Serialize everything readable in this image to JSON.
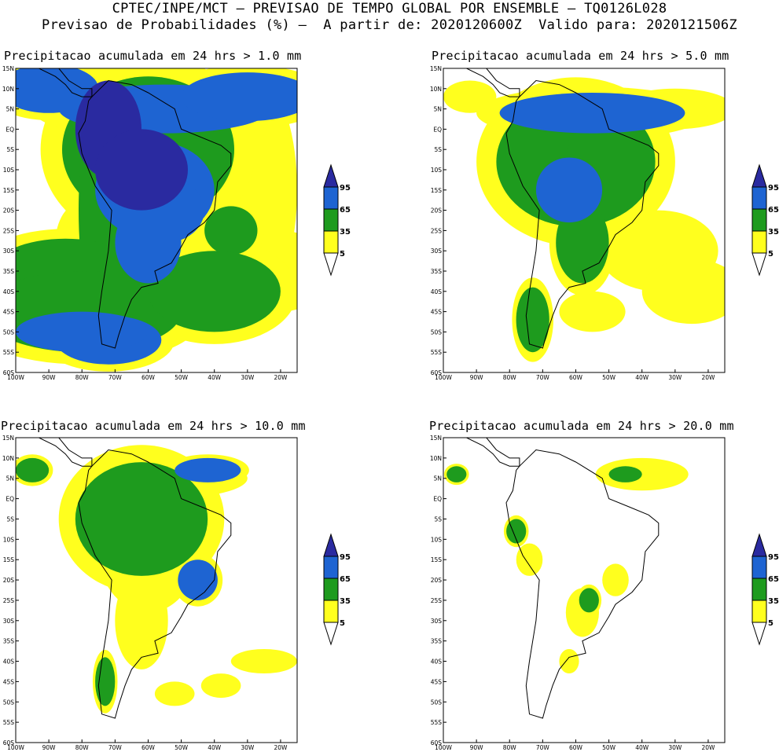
{
  "header": {
    "line1": "CPTEC/INPE/MCT – PREVISAO DE TEMPO GLOBAL POR ENSEMBLE – TQ0126L028",
    "line2": "Previsao de Probabilidades (%) –  A partir de: 2020120600Z  Valido para: 2020121506Z"
  },
  "panels": [
    {
      "title": "Precipitacao acumulada em 24 hrs > 1.0 mm",
      "threshold_mm": 1.0,
      "coverage": 4
    },
    {
      "title": "Precipitacao acumulada em 24 hrs > 5.0 mm",
      "threshold_mm": 5.0,
      "coverage": 3
    },
    {
      "title": "Precipitacao acumulada em 24 hrs > 10.0 mm",
      "threshold_mm": 10.0,
      "coverage": 2
    },
    {
      "title": "Precipitacao acumulada em 24 hrs > 20.0 mm",
      "threshold_mm": 20.0,
      "coverage": 1
    }
  ],
  "lat_labels": [
    "15N",
    "10N",
    "5N",
    "EQ",
    "5S",
    "10S",
    "15S",
    "20S",
    "25S",
    "30S",
    "35S",
    "40S",
    "45S",
    "50S",
    "55S",
    "60S"
  ],
  "lon_labels": [
    "100W",
    "90W",
    "80W",
    "70W",
    "60W",
    "50W",
    "40W",
    "30W",
    "20W"
  ],
  "colorbar": {
    "levels": [
      "95",
      "65",
      "35",
      "5"
    ],
    "colors": [
      "#2a2aa0",
      "#1e64d2",
      "#1e9b1e",
      "#ffff1e"
    ]
  }
}
